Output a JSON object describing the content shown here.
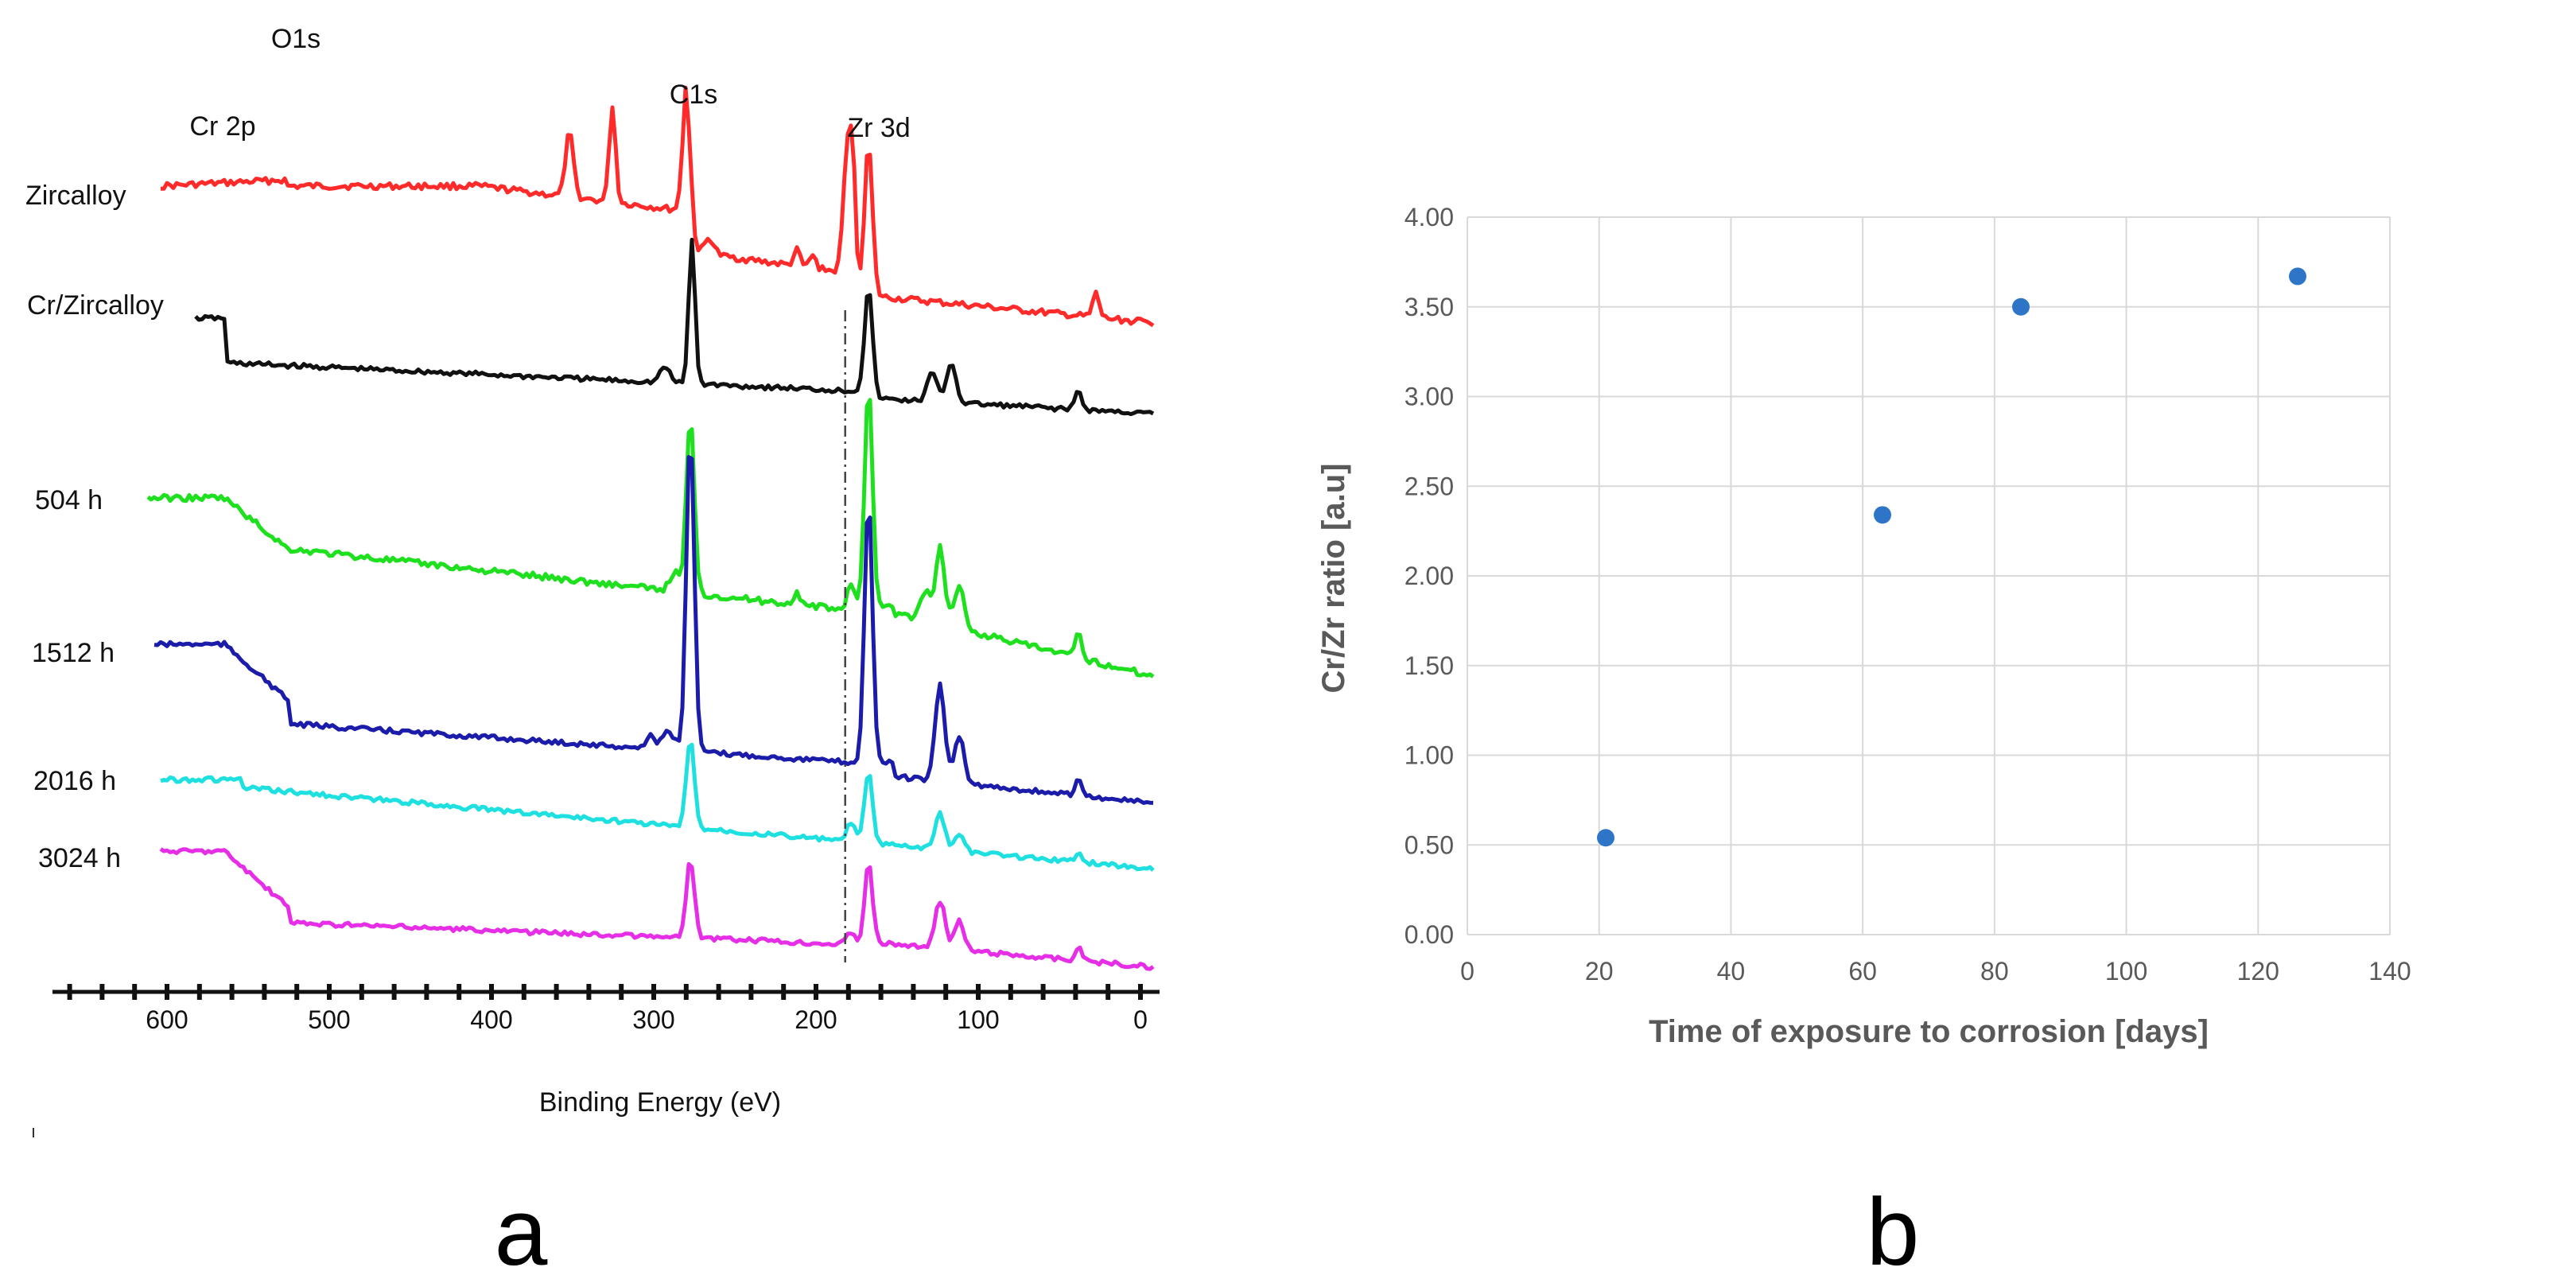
{
  "panels": {
    "a_label": "a",
    "b_label": "b"
  },
  "chart_data": [
    {
      "type": "line",
      "title": "",
      "xlabel": "Binding Energy (eV)",
      "ylabel": "",
      "x_reversed": true,
      "xlim": [
        680,
        -10
      ],
      "xticks": [
        "600",
        "500",
        "400",
        "300",
        "200",
        "100",
        "0"
      ],
      "xtick_values": [
        600,
        500,
        400,
        300,
        200,
        100,
        0
      ],
      "peak_labels": [
        {
          "text": "O1s",
          "energy": 531
        },
        {
          "text": "Cr 2p",
          "energy": 577
        },
        {
          "text": "C1s",
          "energy": 285
        },
        {
          "text": "Zr 3d",
          "energy": 182
        }
      ],
      "reference_line_energy": 182,
      "series": [
        {
          "name": "Zircalloy",
          "color": "#ff2a2a"
        },
        {
          "name": "Cr/Zircalloy",
          "color": "#111111"
        },
        {
          "name": "504 h",
          "color": "#1fe01f"
        },
        {
          "name": "1512 h",
          "color": "#1c1caa"
        },
        {
          "name": "2016 h",
          "color": "#1fe0e0"
        },
        {
          "name": "3024 h",
          "color": "#e62ee6"
        }
      ]
    },
    {
      "type": "scatter",
      "title": "",
      "xlabel": "Time of exposure to corrosion [days]",
      "ylabel": "Cr/Zr ratio [a.u]",
      "xlim": [
        0,
        140
      ],
      "ylim": [
        0,
        4
      ],
      "xticks": [
        "0",
        "20",
        "40",
        "60",
        "80",
        "100",
        "120",
        "140"
      ],
      "xtick_values": [
        0,
        20,
        40,
        60,
        80,
        100,
        120,
        140
      ],
      "yticks": [
        "0.00",
        "0.50",
        "1.00",
        "1.50",
        "2.00",
        "2.50",
        "3.00",
        "3.50",
        "4.00"
      ],
      "ytick_values": [
        0,
        0.5,
        1,
        1.5,
        2,
        2.5,
        3,
        3.5,
        4
      ],
      "grid": true,
      "marker_color": "#2e75c8",
      "points": [
        {
          "x": 21,
          "y": 0.54
        },
        {
          "x": 63,
          "y": 2.34
        },
        {
          "x": 84,
          "y": 3.5
        },
        {
          "x": 126,
          "y": 3.67
        }
      ]
    }
  ]
}
